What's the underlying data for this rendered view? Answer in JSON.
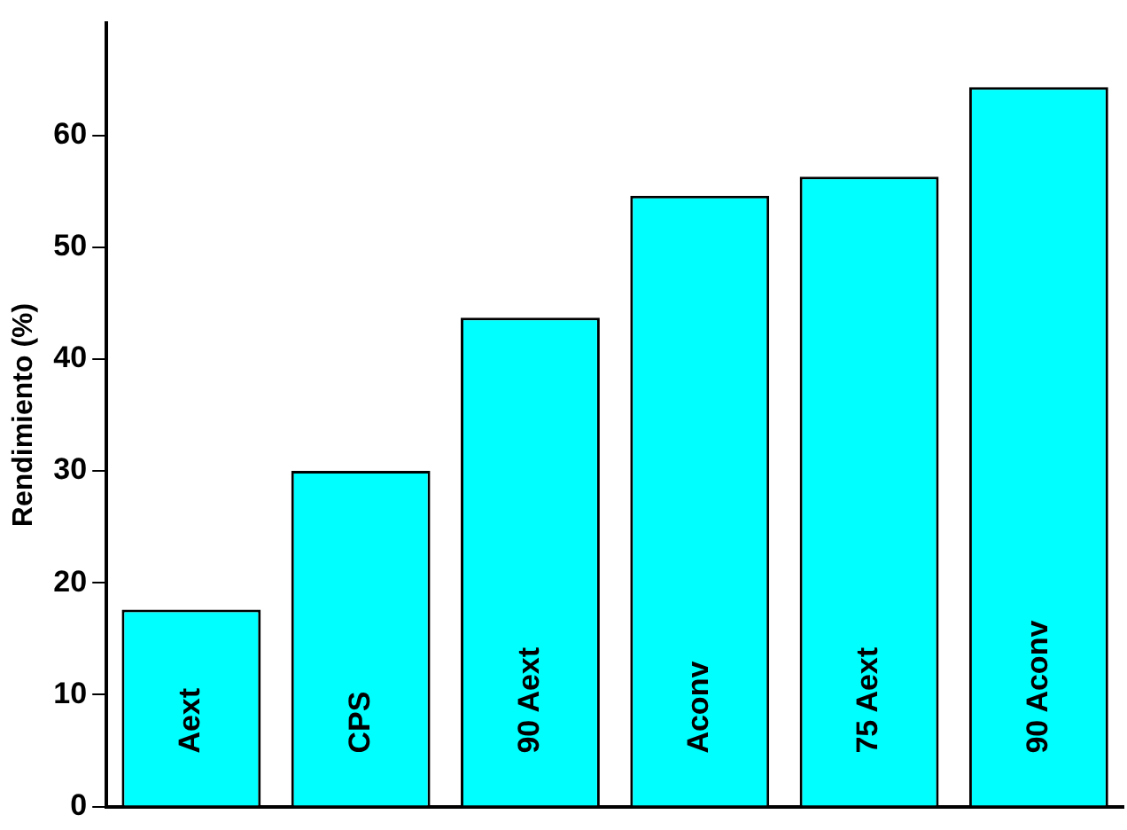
{
  "chart_data": {
    "type": "bar",
    "ylabel": "Rendimiento (%)",
    "categories": [
      "Aext",
      "CPS",
      "90 Aext",
      "Aconv",
      "75 Aext",
      "90 Aconv"
    ],
    "values": [
      17.6,
      30.0,
      43.7,
      54.6,
      56.3,
      64.3
    ],
    "color": "#00ffff",
    "ylim": [
      0,
      70
    ],
    "yticks": [
      0,
      10,
      20,
      30,
      40,
      50,
      60
    ],
    "grid": false,
    "legend": false
  }
}
